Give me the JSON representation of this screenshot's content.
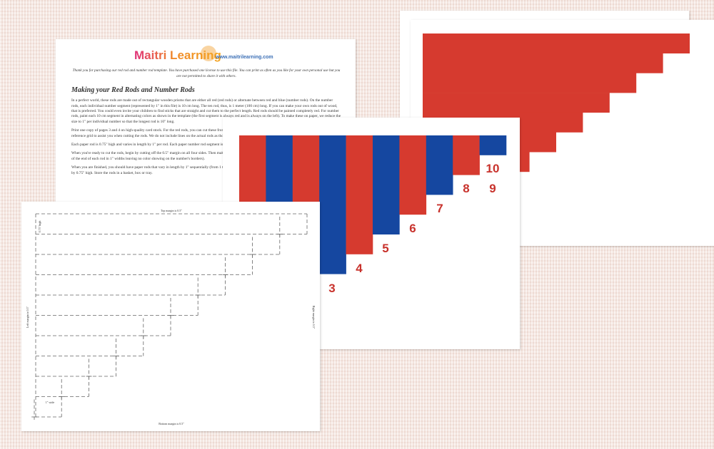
{
  "logo": {
    "name": "Maitri Learning",
    "url": "www.maitrilearning.com"
  },
  "instructions": {
    "intro": "Thank you for purchasing our red rod and number rod template. You have purchased one license to use this file. You can print as often as you like for your own personal use but you are not permitted to share it with others.",
    "heading": "Making your Red Rods and Number Rods",
    "paragraphs": [
      "In a perfect world, these rods are made out of rectangular wooden prisms that are either all red (red rods) or alternate between red and blue (number rods). On the number rods, each individual number segment (represented by 1\" in this file) is 10 cm long. The ten rod, thus, is 1 meter (100 cm) long. If you can make your own rods out of wood, that is preferred. You could even invite your children to find sticks that are straight and cut them to the perfect length. Red rods should be painted completely red. For number rods, paint each 10 cm segment in alternating colors as shown in the template (the first segment is always red and is always on the left). To make these on paper, we reduce the size to 1\" per individual number so that the longest rod is 10\" long.",
      "Print one copy of pages 3 and 4 on high-quality card stock. For the red rods, you can cut these from red card stock. If the material has weight to it, all the better. Page 2 is a reference grid to assist you when cutting the rods. We do not include lines on the actual rods as those create a visual distraction.",
      "Each paper rod is 0.75\" high and varies in length by 1\" per rod. Each paper number rod segment is 1\" wide. There is a 0.5\" margin around all sides of the page.",
      "When you're ready to cut the rods, begin by cutting off the 0.5\" margin on all four sides. Then make this 0.75\" cut to separate all of the rows. For the red rods, cut the white off of the end of each rod in 1\" widths leaving no color showing on the number's borders).",
      "When you are finished, you should have paper rods that vary in length by 1\" sequentially (from 1 to 10) and one card for each number. Each number card is just under 1\" wide by 0.75\" high. Store the rods in a basket, box or tray."
    ]
  },
  "number_rods": {
    "labels": [
      3,
      4,
      5,
      6,
      7,
      8,
      9,
      10
    ]
  },
  "template": {
    "top": "Top margin is 0.5\"",
    "height": "0.75\" high",
    "left": "Left margin is 0.5\"",
    "right": "Right margin is 0.5\"",
    "bottom": "Bottom margin is 0.5\"",
    "width": "1\" wide"
  }
}
